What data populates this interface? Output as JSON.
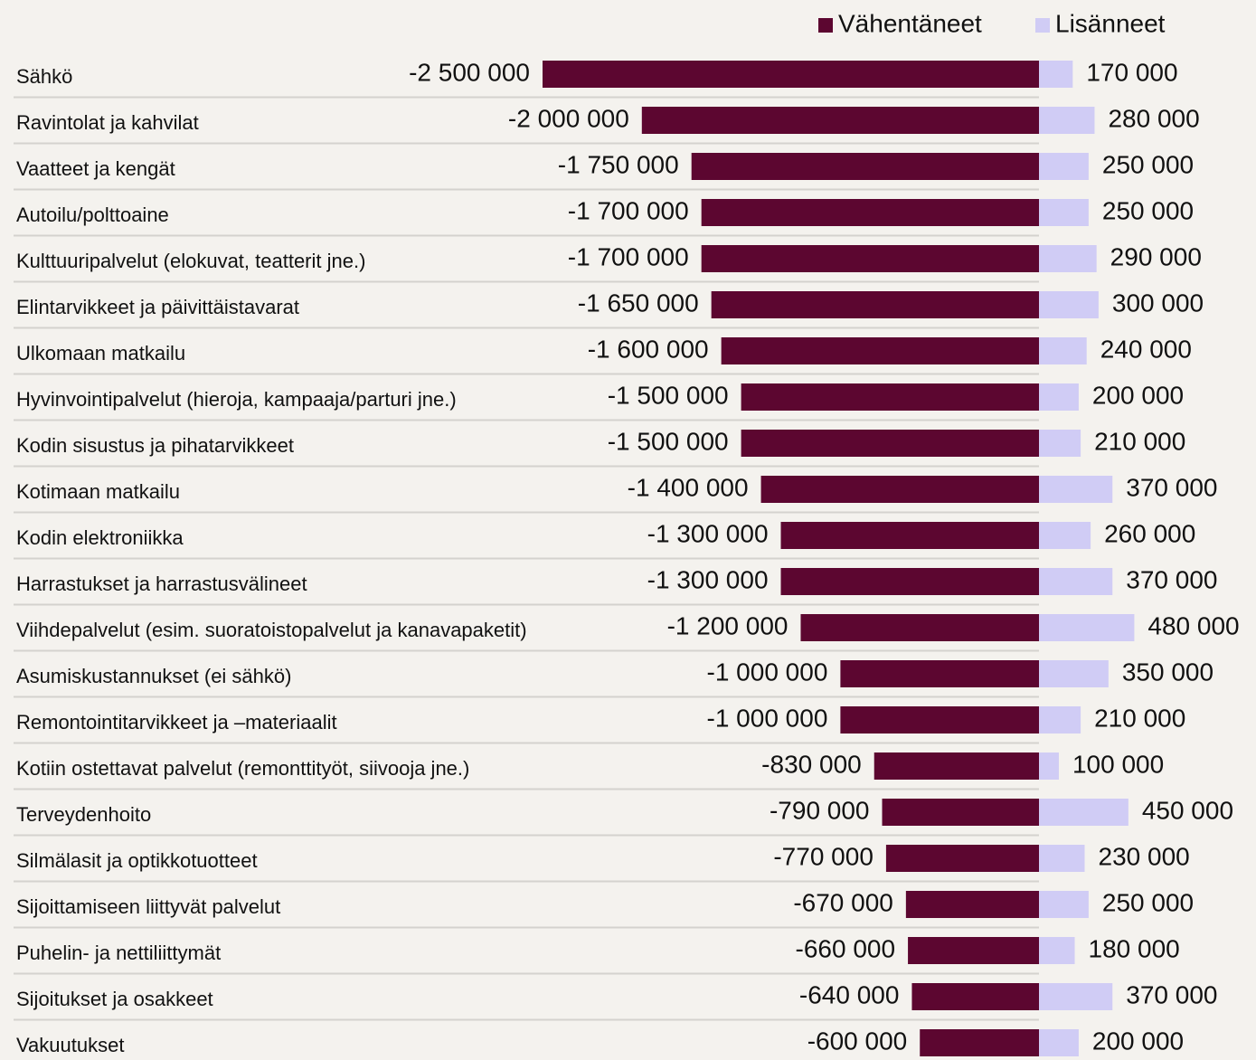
{
  "chart_data": {
    "type": "diverging-bar",
    "categories": [
      "Sähkö",
      "Ravintolat ja kahvilat",
      "Vaatteet ja kengät",
      "Autoilu/polttoaine",
      "Kulttuuripalvelut (elokuvat, teatterit jne.)",
      "Elintarvikkeet ja päivittäistavarat",
      "Ulkomaan matkailu",
      "Hyvinvointipalvelut (hieroja, kampaaja/parturi jne.)",
      "Kodin sisustus ja pihatarvikkeet",
      "Kotimaan matkailu",
      "Kodin elektroniikka",
      "Harrastukset ja harrastusvälineet",
      "Viihdepalvelut (esim. suoratoistopalvelut ja kanavapaketit)",
      "Asumiskustannukset (ei sähkö)",
      "Remontointitarvikkeet ja –materiaalit",
      "Kotiin ostettavat palvelut (remonttityöt, siivooja jne.)",
      "Terveydenhoito",
      "Silmälasit ja optikkotuotteet",
      "Sijoittamiseen liittyvät palvelut",
      "Puhelin- ja nettiliittymät",
      "Sijoitukset ja osakkeet",
      "Vakuutukset"
    ],
    "series": [
      {
        "name": "Vähentäneet",
        "color": "#5c0630",
        "values": [
          -2500000,
          -2000000,
          -1750000,
          -1700000,
          -1700000,
          -1650000,
          -1600000,
          -1500000,
          -1500000,
          -1400000,
          -1300000,
          -1300000,
          -1200000,
          -1000000,
          -1000000,
          -830000,
          -790000,
          -770000,
          -670000,
          -660000,
          -640000,
          -600000
        ],
        "value_labels": [
          "-2 500 000",
          "-2 000 000",
          "-1 750 000",
          "-1 700 000",
          "-1 700 000",
          "-1 650 000",
          "-1 600 000",
          "-1 500 000",
          "-1 500 000",
          "-1 400 000",
          "-1 300 000",
          "-1 300 000",
          "-1 200 000",
          "-1 000 000",
          "-1 000 000",
          "-830 000",
          "-790 000",
          "-770 000",
          "-670 000",
          "-660 000",
          "-640 000",
          "-600 000"
        ]
      },
      {
        "name": "Lisänneet",
        "color": "#d0ccf5",
        "values": [
          170000,
          280000,
          250000,
          250000,
          290000,
          300000,
          240000,
          200000,
          210000,
          370000,
          260000,
          370000,
          480000,
          350000,
          210000,
          100000,
          450000,
          230000,
          250000,
          180000,
          370000,
          200000
        ],
        "value_labels": [
          "170 000",
          "280 000",
          "250 000",
          "250 000",
          "290 000",
          "300 000",
          "240 000",
          "200 000",
          "210 000",
          "370 000",
          "260 000",
          "370 000",
          "480 000",
          "350 000",
          "210 000",
          "100 000",
          "450 000",
          "230 000",
          "250 000",
          "180 000",
          "370 000",
          "200 000"
        ]
      }
    ],
    "legend": "top-right"
  }
}
